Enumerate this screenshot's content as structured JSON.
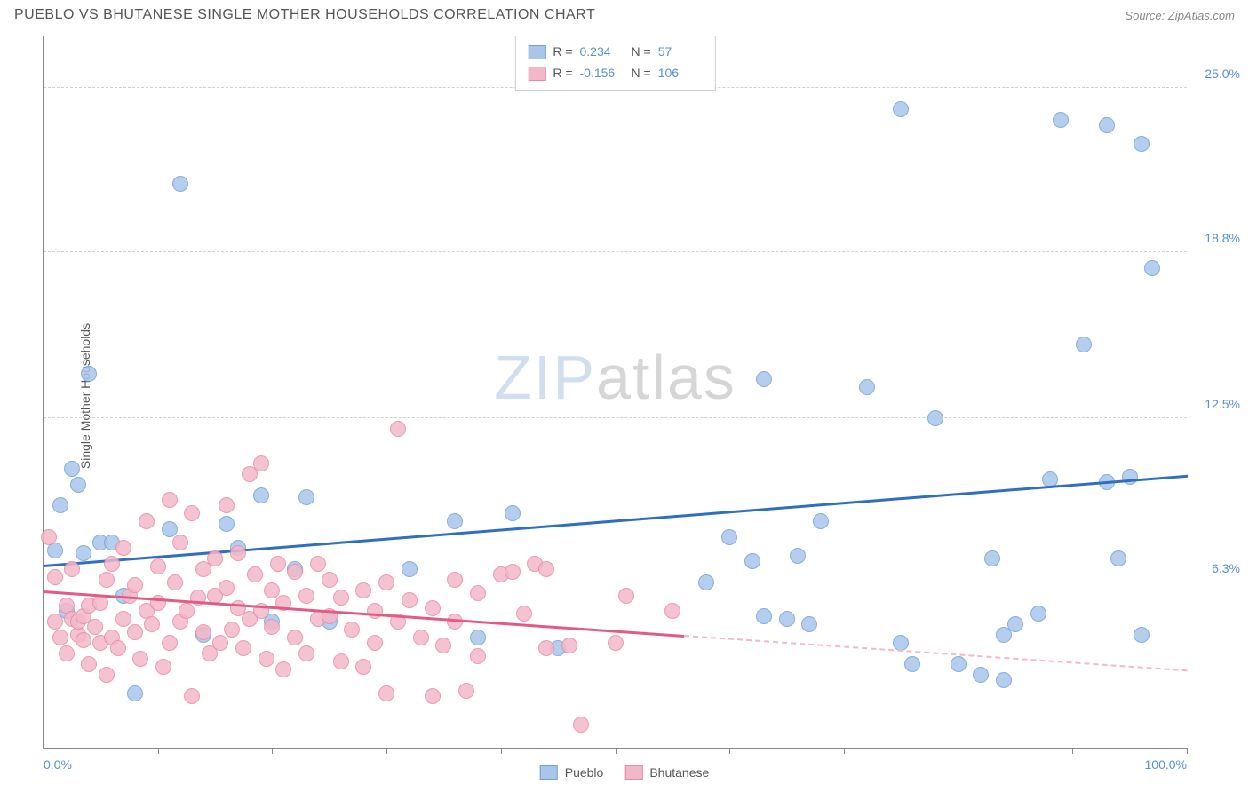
{
  "header": {
    "title": "PUEBLO VS BHUTANESE SINGLE MOTHER HOUSEHOLDS CORRELATION CHART",
    "source_label": "Source:",
    "source_name": "ZipAtlas.com"
  },
  "watermark": {
    "part1": "ZIP",
    "part2": "atlas"
  },
  "chart": {
    "type": "scatter",
    "ylabel": "Single Mother Households",
    "xlim": [
      0,
      100
    ],
    "ylim": [
      0,
      27
    ],
    "xtick_positions": [
      0,
      10,
      20,
      30,
      40,
      50,
      60,
      70,
      80,
      90,
      100
    ],
    "xtick_labels": {
      "0": "0.0%",
      "100": "100.0%"
    },
    "ytick_positions": [
      6.3,
      12.5,
      18.8,
      25.0
    ],
    "ytick_labels": [
      "6.3%",
      "12.5%",
      "18.8%",
      "25.0%"
    ],
    "gridline_color": "#d0d0d0",
    "axis_color": "#888888",
    "background_color": "#ffffff",
    "tick_label_color": "#5a8fd6",
    "axis_label_color": "#555555",
    "marker_radius": 9,
    "marker_stroke_width": 1.5,
    "marker_fill_opacity": 0.28,
    "line_width": 2.5,
    "series": [
      {
        "name": "Pueblo",
        "color_stroke": "#6fa0db",
        "color_fill": "#a9c6ea",
        "line_color": "#2f6fc2",
        "R": "0.234",
        "N": "57",
        "trend": {
          "x1": 0,
          "y1": 7.0,
          "x2": 100,
          "y2": 10.4,
          "solid_until_x": 100
        },
        "points": [
          [
            1,
            7.5
          ],
          [
            1.5,
            9.2
          ],
          [
            2,
            5.2
          ],
          [
            2.5,
            10.6
          ],
          [
            3,
            10.0
          ],
          [
            3.5,
            7.4
          ],
          [
            4,
            14.2
          ],
          [
            5,
            7.8
          ],
          [
            6,
            7.8
          ],
          [
            7,
            5.8
          ],
          [
            8,
            2.1
          ],
          [
            12,
            21.4
          ],
          [
            11,
            8.3
          ],
          [
            14,
            4.3
          ],
          [
            16,
            8.5
          ],
          [
            17,
            7.6
          ],
          [
            19,
            9.6
          ],
          [
            20,
            4.8
          ],
          [
            22,
            6.8
          ],
          [
            23,
            9.5
          ],
          [
            25,
            4.8
          ],
          [
            32,
            6.8
          ],
          [
            36,
            8.6
          ],
          [
            38,
            4.2
          ],
          [
            41,
            8.9
          ],
          [
            45,
            3.8
          ],
          [
            58,
            6.3
          ],
          [
            60,
            8.0
          ],
          [
            62,
            7.1
          ],
          [
            63,
            14.0
          ],
          [
            63,
            5.0
          ],
          [
            65,
            4.9
          ],
          [
            66,
            7.3
          ],
          [
            67,
            4.7
          ],
          [
            68,
            8.6
          ],
          [
            72,
            13.7
          ],
          [
            75,
            4.0
          ],
          [
            76,
            3.2
          ],
          [
            78,
            12.5
          ],
          [
            80,
            3.2
          ],
          [
            82,
            2.8
          ],
          [
            83,
            7.2
          ],
          [
            84,
            4.3
          ],
          [
            85,
            4.7
          ],
          [
            87,
            5.1
          ],
          [
            88,
            10.2
          ],
          [
            89,
            23.8
          ],
          [
            91,
            15.3
          ],
          [
            93,
            23.6
          ],
          [
            93,
            10.1
          ],
          [
            94,
            7.2
          ],
          [
            95,
            10.3
          ],
          [
            96,
            22.9
          ],
          [
            96,
            4.3
          ],
          [
            97,
            18.2
          ],
          [
            75,
            24.2
          ],
          [
            84,
            2.6
          ]
        ]
      },
      {
        "name": "Bhutanese",
        "color_stroke": "#e88aa5",
        "color_fill": "#f3b8c8",
        "line_color": "#e35a85",
        "R": "-0.156",
        "N": "106",
        "trend": {
          "x1": 0,
          "y1": 6.0,
          "x2": 100,
          "y2": 3.0,
          "solid_until_x": 56
        },
        "points": [
          [
            0.5,
            8.0
          ],
          [
            1,
            6.5
          ],
          [
            1,
            4.8
          ],
          [
            1.5,
            4.2
          ],
          [
            2,
            5.4
          ],
          [
            2,
            3.6
          ],
          [
            2.5,
            4.9
          ],
          [
            2.5,
            6.8
          ],
          [
            3,
            4.3
          ],
          [
            3,
            4.8
          ],
          [
            3.5,
            4.1
          ],
          [
            3.5,
            5.0
          ],
          [
            4,
            5.4
          ],
          [
            4,
            3.2
          ],
          [
            4.5,
            4.6
          ],
          [
            5,
            4.0
          ],
          [
            5,
            5.5
          ],
          [
            5.5,
            6.4
          ],
          [
            5.5,
            2.8
          ],
          [
            6,
            7.0
          ],
          [
            6,
            4.2
          ],
          [
            6.5,
            3.8
          ],
          [
            7,
            7.6
          ],
          [
            7,
            4.9
          ],
          [
            7.5,
            5.8
          ],
          [
            8,
            4.4
          ],
          [
            8,
            6.2
          ],
          [
            8.5,
            3.4
          ],
          [
            9,
            8.6
          ],
          [
            9,
            5.2
          ],
          [
            9.5,
            4.7
          ],
          [
            10,
            6.9
          ],
          [
            10,
            5.5
          ],
          [
            10.5,
            3.1
          ],
          [
            11,
            9.4
          ],
          [
            11,
            4.0
          ],
          [
            11.5,
            6.3
          ],
          [
            12,
            7.8
          ],
          [
            12,
            4.8
          ],
          [
            12.5,
            5.2
          ],
          [
            13,
            2.0
          ],
          [
            13,
            8.9
          ],
          [
            13.5,
            5.7
          ],
          [
            14,
            4.4
          ],
          [
            14,
            6.8
          ],
          [
            14.5,
            3.6
          ],
          [
            15,
            7.2
          ],
          [
            15,
            5.8
          ],
          [
            15.5,
            4.0
          ],
          [
            16,
            9.2
          ],
          [
            16,
            6.1
          ],
          [
            16.5,
            4.5
          ],
          [
            17,
            5.3
          ],
          [
            17,
            7.4
          ],
          [
            17.5,
            3.8
          ],
          [
            18,
            10.4
          ],
          [
            18,
            4.9
          ],
          [
            18.5,
            6.6
          ],
          [
            19,
            10.8
          ],
          [
            19,
            5.2
          ],
          [
            19.5,
            3.4
          ],
          [
            20,
            6.0
          ],
          [
            20,
            4.6
          ],
          [
            20.5,
            7.0
          ],
          [
            21,
            5.5
          ],
          [
            21,
            3.0
          ],
          [
            22,
            6.7
          ],
          [
            22,
            4.2
          ],
          [
            23,
            5.8
          ],
          [
            23,
            3.6
          ],
          [
            24,
            7.0
          ],
          [
            24,
            4.9
          ],
          [
            25,
            5.0
          ],
          [
            25,
            6.4
          ],
          [
            26,
            3.3
          ],
          [
            26,
            5.7
          ],
          [
            27,
            4.5
          ],
          [
            28,
            6.0
          ],
          [
            28,
            3.1
          ],
          [
            29,
            5.2
          ],
          [
            29,
            4.0
          ],
          [
            30,
            6.3
          ],
          [
            30,
            2.1
          ],
          [
            31,
            12.1
          ],
          [
            31,
            4.8
          ],
          [
            32,
            5.6
          ],
          [
            33,
            4.2
          ],
          [
            34,
            5.3
          ],
          [
            34,
            2.0
          ],
          [
            35,
            3.9
          ],
          [
            36,
            4.8
          ],
          [
            36,
            6.4
          ],
          [
            37,
            2.2
          ],
          [
            38,
            5.9
          ],
          [
            38,
            3.5
          ],
          [
            40,
            6.6
          ],
          [
            41,
            6.7
          ],
          [
            42,
            5.1
          ],
          [
            43,
            7.0
          ],
          [
            44,
            6.8
          ],
          [
            44,
            3.8
          ],
          [
            46,
            3.9
          ],
          [
            47,
            0.9
          ],
          [
            50,
            4.0
          ],
          [
            51,
            5.8
          ],
          [
            55,
            5.2
          ]
        ]
      }
    ]
  },
  "legend_bottom": {
    "items": [
      {
        "label": "Pueblo",
        "stroke": "#6fa0db",
        "fill": "#a9c6ea"
      },
      {
        "label": "Bhutanese",
        "stroke": "#e88aa5",
        "fill": "#f3b8c8"
      }
    ]
  },
  "legend_top": {
    "r_label": "R =",
    "n_label": "N ="
  }
}
